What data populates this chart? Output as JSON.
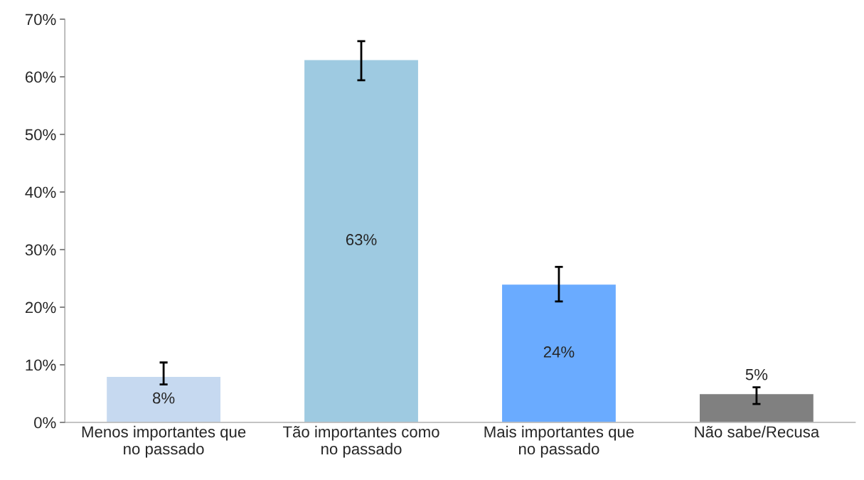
{
  "chart_data": {
    "type": "bar",
    "categories": [
      "Menos importantes que\nno passado",
      "Tão importantes como\nno passado",
      "Mais importantes que\nno passado",
      "Não sabe/Recusa"
    ],
    "values": [
      8,
      63,
      24,
      5
    ],
    "errors": [
      [
        6.6,
        10.4
      ],
      [
        59.4,
        66.2
      ],
      [
        21.0,
        27.0
      ],
      [
        3.2,
        6.1
      ]
    ],
    "colors": [
      "#c6d9f0",
      "#9ecae1",
      "#6aabff",
      "#808080"
    ],
    "value_labels": [
      "8%",
      "63%",
      "24%",
      "5%"
    ],
    "ylim": [
      0,
      70
    ],
    "yticks": [
      {
        "value": 0,
        "label": "0%"
      },
      {
        "value": 10,
        "label": "10%"
      },
      {
        "value": 20,
        "label": "20%"
      },
      {
        "value": 30,
        "label": "30%"
      },
      {
        "value": 40,
        "label": "40%"
      },
      {
        "value": 50,
        "label": "50%"
      },
      {
        "value": 60,
        "label": "60%"
      },
      {
        "value": 70,
        "label": "70%"
      }
    ],
    "grid": false,
    "legend": false
  }
}
